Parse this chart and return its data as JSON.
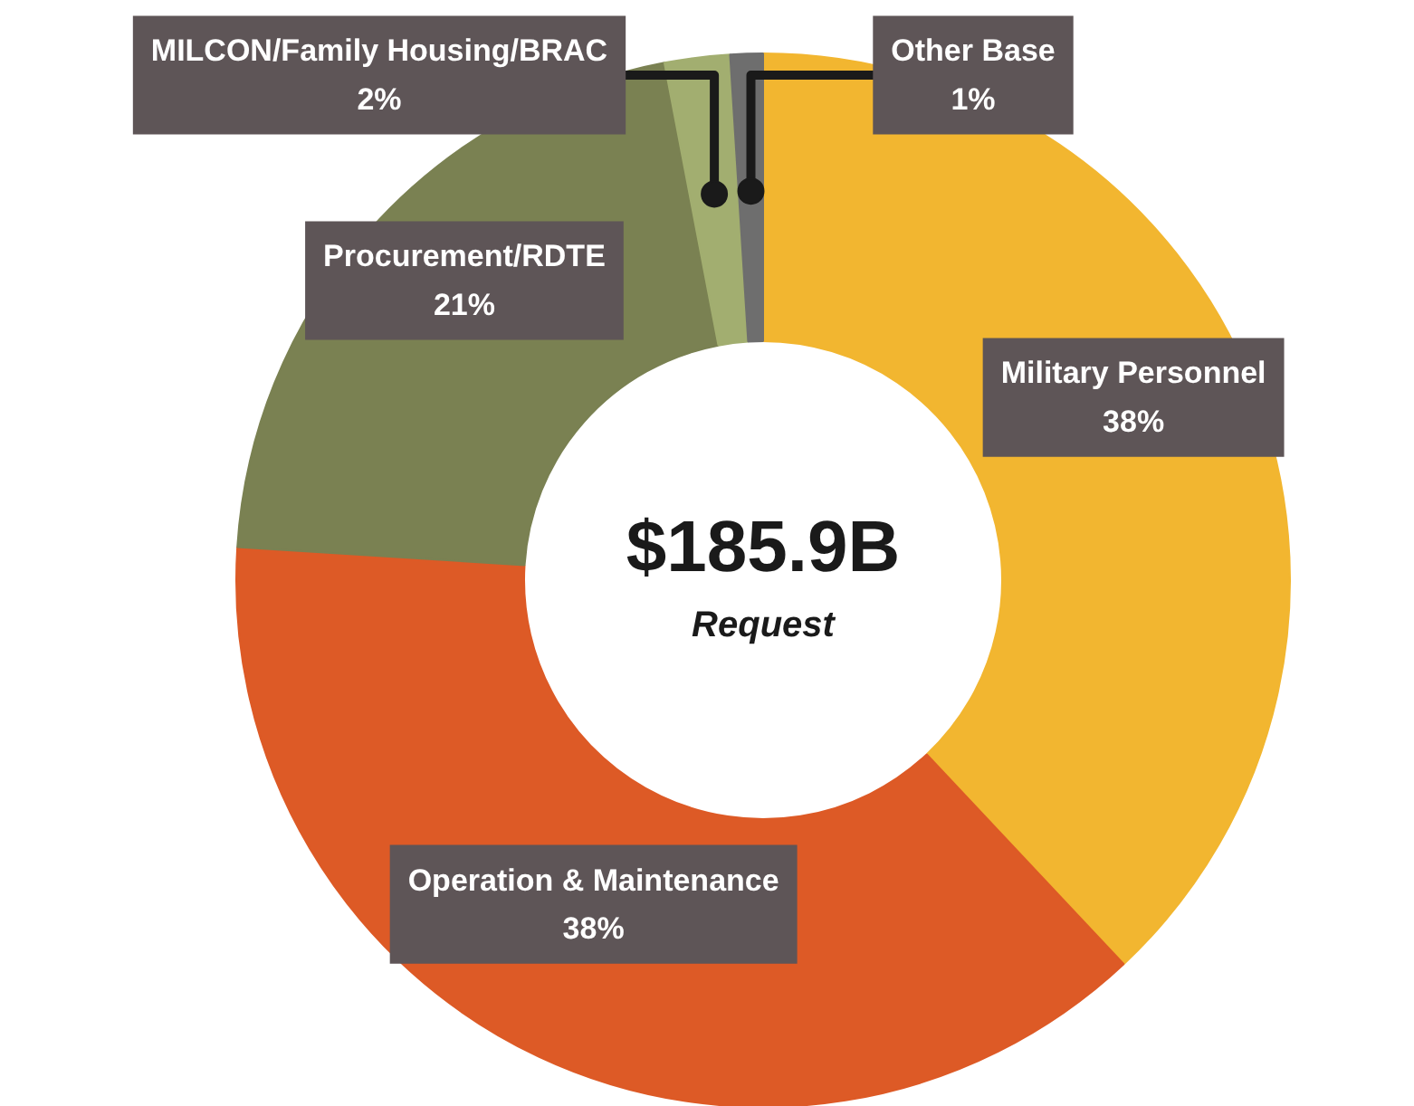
{
  "chart_data": {
    "type": "donut",
    "categories": [
      "Military Personnel",
      "Operation & Maintenance",
      "Procurement/RDTE",
      "MILCON/Family Housing/BRAC",
      "Other Base"
    ],
    "values": [
      38,
      38,
      21,
      2,
      1
    ],
    "colors": [
      "#f2b630",
      "#dd5a26",
      "#7a8152",
      "#a2ae70",
      "#6e6e6e"
    ],
    "value_labels": [
      "38%",
      "38%",
      "21%",
      "2%",
      "1%"
    ],
    "annotations": [
      "$185.9B",
      "Request"
    ]
  }
}
